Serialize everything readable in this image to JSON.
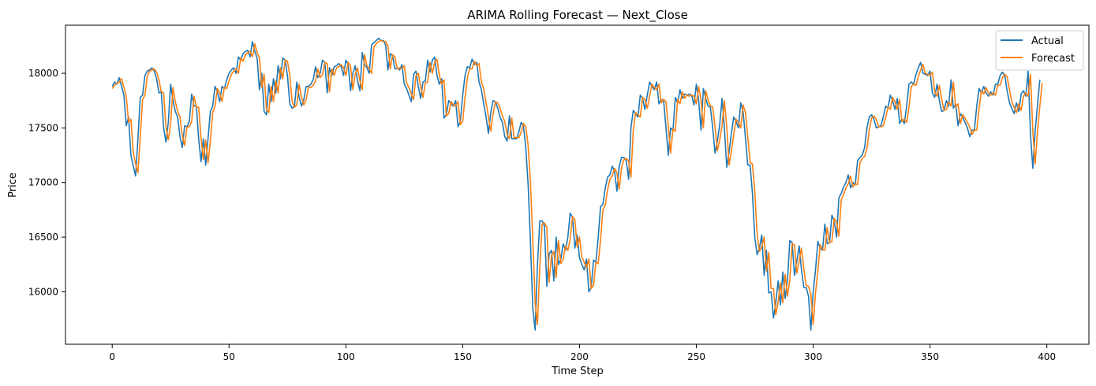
{
  "chart_data": {
    "type": "line",
    "title": "ARIMA Rolling Forecast — Next_Close",
    "xlabel": "Time Step",
    "ylabel": "Price",
    "xlim": [
      -20,
      418
    ],
    "ylim": [
      15520,
      18440
    ],
    "xticks": [
      0,
      50,
      100,
      150,
      200,
      250,
      300,
      350,
      400
    ],
    "yticks": [
      16000,
      16500,
      17000,
      17500,
      18000
    ],
    "xtick_labels": [
      "0",
      "50",
      "100",
      "150",
      "200",
      "250",
      "300",
      "350",
      "400"
    ],
    "ytick_labels": [
      "16000",
      "16500",
      "17000",
      "17500",
      "18000"
    ],
    "grid": false,
    "legend_position": "top-right",
    "series": [
      {
        "name": "Actual",
        "color": "#1f77b4",
        "values": [
          17880,
          17920,
          17900,
          17960,
          17880,
          17800,
          17520,
          17600,
          17250,
          17150,
          17060,
          17400,
          17780,
          17800,
          17980,
          18020,
          18030,
          18050,
          18020,
          17950,
          17820,
          17830,
          17500,
          17370,
          17550,
          17900,
          17750,
          17650,
          17600,
          17420,
          17320,
          17520,
          17510,
          17560,
          17810,
          17700,
          17700,
          17400,
          17190,
          17400,
          17160,
          17400,
          17650,
          17700,
          17880,
          17830,
          17740,
          17880,
          17860,
          17940,
          18000,
          18030,
          18050,
          18000,
          18150,
          18120,
          18180,
          18200,
          18210,
          18150,
          18290,
          18200,
          18140,
          17850,
          18000,
          17650,
          17620,
          17900,
          17740,
          17950,
          17820,
          18070,
          17950,
          18140,
          18120,
          17980,
          17720,
          17680,
          17700,
          17920,
          17780,
          17700,
          17760,
          17880,
          17880,
          17900,
          17940,
          18060,
          17960,
          18000,
          18120,
          18100,
          17820,
          18050,
          17980,
          18060,
          18070,
          18090,
          18060,
          17980,
          18120,
          18080,
          17840,
          18000,
          18070,
          17930,
          17840,
          18190,
          18080,
          18050,
          18000,
          18260,
          18280,
          18300,
          18320,
          18300,
          18300,
          18260,
          18030,
          18180,
          18160,
          18040,
          18050,
          18030,
          18080,
          17900,
          17860,
          17800,
          17740,
          17990,
          18020,
          17880,
          17770,
          17920,
          17930,
          18120,
          18010,
          18120,
          18150,
          17980,
          17900,
          17950,
          17590,
          17620,
          17750,
          17720,
          17700,
          17750,
          17510,
          17560,
          17800,
          17980,
          18060,
          18050,
          18130,
          18080,
          18100,
          17920,
          17850,
          17720,
          17600,
          17450,
          17640,
          17750,
          17740,
          17680,
          17600,
          17550,
          17420,
          17380,
          17610,
          17400,
          17400,
          17400,
          17460,
          17550,
          17520,
          17320,
          16980,
          16450,
          15850,
          15650,
          16250,
          16650,
          16650,
          16600,
          16050,
          16350,
          16380,
          16100,
          16500,
          16250,
          16300,
          16440,
          16380,
          16500,
          16720,
          16680,
          16400,
          16520,
          16310,
          16250,
          16200,
          16300,
          16000,
          16040,
          16290,
          16270,
          16500,
          16780,
          16800,
          16950,
          17050,
          17070,
          17150,
          17100,
          16920,
          17150,
          17230,
          17230,
          17200,
          17030,
          17500,
          17660,
          17630,
          17600,
          17800,
          17770,
          17670,
          17800,
          17920,
          17880,
          17850,
          17920,
          17720,
          17760,
          17750,
          17500,
          17250,
          17500,
          17480,
          17780,
          17730,
          17850,
          17770,
          17810,
          17800,
          17810,
          17800,
          17710,
          17900,
          17750,
          17480,
          17860,
          17770,
          17700,
          17690,
          17500,
          17270,
          17380,
          17530,
          17770,
          17500,
          17140,
          17280,
          17450,
          17600,
          17560,
          17500,
          17730,
          17650,
          17410,
          17160,
          17160,
          16900,
          16500,
          16340,
          16400,
          16520,
          16150,
          16380,
          15990,
          16000,
          15760,
          15900,
          16100,
          15880,
          16180,
          15940,
          16110,
          16470,
          16450,
          16150,
          16280,
          16420,
          16200,
          16040,
          16040,
          15960,
          15650,
          16000,
          16200,
          16460,
          16400,
          16380,
          16620,
          16440,
          16450,
          16700,
          16650,
          16500,
          16860,
          16900,
          16960,
          17000,
          17070,
          16950,
          17000,
          16980,
          17200,
          17230,
          17250,
          17320,
          17500,
          17600,
          17620,
          17580,
          17500,
          17510,
          17520,
          17600,
          17700,
          17680,
          17800,
          17750,
          17670,
          17770,
          17540,
          17580,
          17540,
          17700,
          17900,
          17920,
          17900,
          17990,
          18050,
          18100,
          18000,
          17990,
          17980,
          18020,
          17820,
          17780,
          17900,
          17750,
          17650,
          17660,
          17750,
          17700,
          17940,
          17680,
          17720,
          17520,
          17630,
          17600,
          17550,
          17500,
          17420,
          17480,
          17480,
          17700,
          17860,
          17820,
          17880,
          17820,
          17790,
          17830,
          17800,
          17900,
          17900,
          17980,
          18010,
          17980,
          17840,
          17730,
          17680,
          17630,
          17730,
          17650,
          17810,
          17840,
          17790,
          18020,
          17440,
          17130,
          17470,
          17710,
          17940
        ]
      },
      {
        "name": "Forecast",
        "color": "#ff7f0e",
        "values": [
          17860,
          17890,
          17910,
          17920,
          17950,
          17870,
          17790,
          17550,
          17580,
          17280,
          17170,
          17090,
          17420,
          17760,
          17800,
          17970,
          18020,
          18030,
          18040,
          18010,
          17940,
          17830,
          17820,
          17510,
          17390,
          17540,
          17870,
          17740,
          17650,
          17600,
          17430,
          17340,
          17510,
          17510,
          17560,
          17790,
          17690,
          17690,
          17410,
          17210,
          17390,
          17180,
          17380,
          17640,
          17700,
          17860,
          17820,
          17740,
          17870,
          17860,
          17930,
          17990,
          18020,
          18040,
          18000,
          18140,
          18110,
          18170,
          18190,
          18200,
          18150,
          18270,
          18190,
          18140,
          17870,
          17990,
          17670,
          17640,
          17880,
          17740,
          17930,
          17820,
          18050,
          17950,
          18120,
          18110,
          17980,
          17740,
          17690,
          17710,
          17900,
          17780,
          17710,
          17760,
          17870,
          17870,
          17890,
          17930,
          18040,
          17960,
          17990,
          18100,
          18090,
          17830,
          18040,
          17980,
          18050,
          18060,
          18080,
          18050,
          17980,
          18100,
          18070,
          17850,
          17990,
          18050,
          17930,
          17850,
          18170,
          18070,
          18040,
          18000,
          18240,
          18270,
          18290,
          18300,
          18290,
          18290,
          18250,
          18040,
          18170,
          18150,
          18040,
          18050,
          18040,
          18070,
          17910,
          17870,
          17810,
          17760,
          17980,
          18000,
          17880,
          17780,
          17910,
          17920,
          18100,
          18000,
          18100,
          18130,
          17980,
          17900,
          17940,
          17610,
          17630,
          17740,
          17710,
          17700,
          17740,
          17530,
          17560,
          17780,
          17960,
          18040,
          18040,
          18110,
          18070,
          18090,
          17920,
          17860,
          17730,
          17610,
          17470,
          17630,
          17740,
          17730,
          17680,
          17610,
          17560,
          17440,
          17400,
          17590,
          17410,
          17410,
          17410,
          17460,
          17540,
          17510,
          17340,
          17000,
          16480,
          15900,
          15700,
          16230,
          16620,
          16630,
          16590,
          16090,
          16330,
          16370,
          16130,
          16470,
          16260,
          16300,
          16420,
          16380,
          16480,
          16690,
          16660,
          16410,
          16500,
          16320,
          16270,
          16220,
          16300,
          16030,
          16060,
          16270,
          16260,
          16480,
          16750,
          16790,
          16930,
          17030,
          17060,
          17130,
          17090,
          16940,
          17140,
          17210,
          17220,
          17200,
          17050,
          17480,
          17640,
          17620,
          17600,
          17780,
          17760,
          17680,
          17790,
          17900,
          17870,
          17850,
          17900,
          17730,
          17760,
          17740,
          17510,
          17270,
          17490,
          17470,
          17760,
          17720,
          17830,
          17770,
          17800,
          17790,
          17800,
          17790,
          17720,
          17880,
          17750,
          17500,
          17840,
          17760,
          17700,
          17690,
          17510,
          17290,
          17390,
          17520,
          17750,
          17510,
          17160,
          17290,
          17440,
          17580,
          17550,
          17500,
          17710,
          17640,
          17420,
          17180,
          17170,
          16920,
          16530,
          16370,
          16410,
          16500,
          16190,
          16360,
          16030,
          16030,
          15790,
          15910,
          16080,
          15900,
          16160,
          15960,
          16110,
          16440,
          16430,
          16170,
          16280,
          16400,
          16210,
          16060,
          16050,
          15980,
          15700,
          15990,
          16190,
          16430,
          16390,
          16380,
          16590,
          16450,
          16460,
          16670,
          16640,
          16510,
          16840,
          16890,
          16950,
          16990,
          17060,
          16960,
          16990,
          16980,
          17180,
          17220,
          17240,
          17310,
          17480,
          17590,
          17610,
          17580,
          17510,
          17510,
          17520,
          17590,
          17690,
          17670,
          17780,
          17740,
          17670,
          17760,
          17560,
          17580,
          17550,
          17690,
          17880,
          17900,
          17890,
          17970,
          18030,
          18080,
          18000,
          17990,
          17980,
          18010,
          17830,
          17790,
          17890,
          17760,
          17660,
          17670,
          17740,
          17700,
          17920,
          17690,
          17720,
          17540,
          17620,
          17590,
          17550,
          17510,
          17440,
          17480,
          17480,
          17680,
          17840,
          17810,
          17870,
          17820,
          17800,
          17820,
          17800,
          17890,
          17890,
          17960,
          17990,
          17970,
          17850,
          17740,
          17690,
          17640,
          17720,
          17660,
          17790,
          17820,
          17790,
          17990,
          17470,
          17170,
          17460,
          17700,
          17910
        ]
      }
    ]
  }
}
